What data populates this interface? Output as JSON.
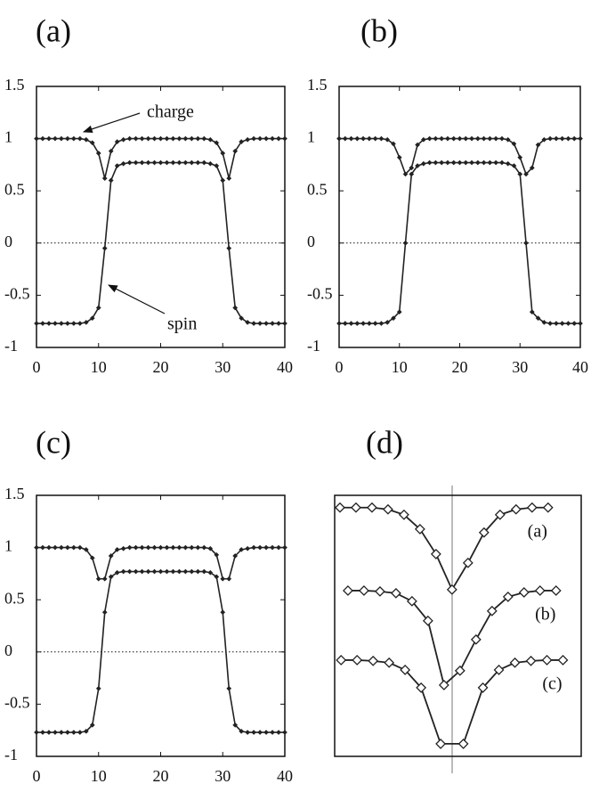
{
  "chart_data": [
    {
      "type": "line",
      "title": "(a)",
      "x": [
        0,
        1,
        2,
        3,
        4,
        5,
        6,
        7,
        8,
        9,
        10,
        11,
        12,
        13,
        14,
        15,
        16,
        17,
        18,
        19,
        20,
        21,
        22,
        23,
        24,
        25,
        26,
        27,
        28,
        29,
        30,
        31,
        32,
        33,
        34,
        35,
        36,
        37,
        38,
        39,
        40
      ],
      "series": [
        {
          "name": "charge",
          "color": "#222222",
          "values": [
            1,
            1,
            1,
            1,
            1,
            1,
            1,
            1,
            0.99,
            0.96,
            0.86,
            0.62,
            0.88,
            0.97,
            0.99,
            1,
            1,
            1,
            1,
            1,
            1,
            1,
            1,
            1,
            1,
            1,
            1,
            1,
            0.99,
            0.96,
            0.86,
            0.62,
            0.88,
            0.97,
            0.99,
            1,
            1,
            1,
            1,
            1,
            1
          ]
        },
        {
          "name": "spin",
          "color": "#222222",
          "values": [
            -0.77,
            -0.77,
            -0.77,
            -0.77,
            -0.77,
            -0.77,
            -0.77,
            -0.77,
            -0.76,
            -0.72,
            -0.62,
            -0.05,
            0.6,
            0.74,
            0.76,
            0.77,
            0.77,
            0.77,
            0.77,
            0.77,
            0.77,
            0.77,
            0.77,
            0.77,
            0.77,
            0.77,
            0.77,
            0.77,
            0.76,
            0.74,
            0.6,
            -0.05,
            -0.62,
            -0.72,
            -0.76,
            -0.77,
            -0.77,
            -0.77,
            -0.77,
            -0.77,
            -0.77
          ]
        }
      ],
      "xlim": [
        0,
        40
      ],
      "xticks": [
        0,
        10,
        20,
        30,
        40
      ],
      "ylim": [
        -1,
        1.5
      ],
      "yticks": [
        -1,
        -0.5,
        0,
        0.5,
        1,
        1.5
      ],
      "zero_line": true,
      "marker": "diamond"
    },
    {
      "type": "line",
      "title": "(b)",
      "x": [
        0,
        1,
        2,
        3,
        4,
        5,
        6,
        7,
        8,
        9,
        10,
        11,
        12,
        13,
        14,
        15,
        16,
        17,
        18,
        19,
        20,
        21,
        22,
        23,
        24,
        25,
        26,
        27,
        28,
        29,
        30,
        31,
        32,
        33,
        34,
        35,
        36,
        37,
        38,
        39,
        40
      ],
      "series": [
        {
          "color": "#222222",
          "values": [
            1,
            1,
            1,
            1,
            1,
            1,
            1,
            1,
            0.99,
            0.95,
            0.82,
            0.66,
            0.72,
            0.94,
            0.99,
            1,
            1,
            1,
            1,
            1,
            1,
            1,
            1,
            1,
            1,
            1,
            1,
            1,
            0.99,
            0.95,
            0.82,
            0.66,
            0.72,
            0.94,
            0.99,
            1,
            1,
            1,
            1,
            1,
            1
          ]
        },
        {
          "color": "#222222",
          "values": [
            -0.77,
            -0.77,
            -0.77,
            -0.77,
            -0.77,
            -0.77,
            -0.77,
            -0.77,
            -0.76,
            -0.72,
            -0.66,
            0,
            0.66,
            0.74,
            0.76,
            0.77,
            0.77,
            0.77,
            0.77,
            0.77,
            0.77,
            0.77,
            0.77,
            0.77,
            0.77,
            0.77,
            0.77,
            0.77,
            0.76,
            0.74,
            0.66,
            0,
            -0.66,
            -0.72,
            -0.76,
            -0.77,
            -0.77,
            -0.77,
            -0.77,
            -0.77,
            -0.77
          ]
        }
      ],
      "xlim": [
        0,
        40
      ],
      "xticks": [
        0,
        10,
        20,
        30,
        40
      ],
      "ylim": [
        -1,
        1.5
      ],
      "yticks": [
        -1,
        -0.5,
        0,
        0.5,
        1,
        1.5
      ],
      "zero_line": true,
      "marker": "diamond"
    },
    {
      "type": "line",
      "title": "(c)",
      "x": [
        0,
        1,
        2,
        3,
        4,
        5,
        6,
        7,
        8,
        9,
        10,
        11,
        12,
        13,
        14,
        15,
        16,
        17,
        18,
        19,
        20,
        21,
        22,
        23,
        24,
        25,
        26,
        27,
        28,
        29,
        30,
        31,
        32,
        33,
        34,
        35,
        36,
        37,
        38,
        39,
        40
      ],
      "series": [
        {
          "color": "#222222",
          "values": [
            1,
            1,
            1,
            1,
            1,
            1,
            1,
            1,
            0.98,
            0.9,
            0.7,
            0.7,
            0.92,
            0.98,
            0.99,
            1,
            1,
            1,
            1,
            1,
            1,
            1,
            1,
            1,
            1,
            1,
            1,
            1,
            0.99,
            0.93,
            0.7,
            0.7,
            0.92,
            0.98,
            0.99,
            1,
            1,
            1,
            1,
            1,
            1
          ]
        },
        {
          "color": "#222222",
          "values": [
            -0.77,
            -0.77,
            -0.77,
            -0.77,
            -0.77,
            -0.77,
            -0.77,
            -0.77,
            -0.76,
            -0.7,
            -0.35,
            0.38,
            0.72,
            0.76,
            0.77,
            0.77,
            0.77,
            0.77,
            0.77,
            0.77,
            0.77,
            0.77,
            0.77,
            0.77,
            0.77,
            0.77,
            0.77,
            0.77,
            0.76,
            0.72,
            0.38,
            -0.35,
            -0.7,
            -0.76,
            -0.77,
            -0.77,
            -0.77,
            -0.77,
            -0.77,
            -0.77,
            -0.77
          ]
        }
      ],
      "xlim": [
        0,
        40
      ],
      "xticks": [
        0,
        10,
        20,
        30,
        40
      ],
      "ylim": [
        -1,
        1.5
      ],
      "yticks": [
        -1,
        -0.5,
        0,
        0.5,
        1,
        1.5
      ],
      "zero_line": true,
      "marker": "diamond"
    },
    {
      "type": "line",
      "title": "(d)",
      "xlim": [
        0,
        15.4
      ],
      "ylim": [
        0,
        16
      ],
      "series": [
        {
          "name": "(a)",
          "color": "#222222",
          "x": [
            0.33,
            1.33,
            2.33,
            3.33,
            4.33,
            5.33,
            6.33,
            7.33,
            8.33,
            9.33,
            10.33,
            11.33,
            12.33,
            13.33
          ],
          "values": [
            15.25,
            15.25,
            15.25,
            15.14,
            14.81,
            13.93,
            12.4,
            10.22,
            11.86,
            13.72,
            14.81,
            15.14,
            15.25,
            15.25
          ]
        },
        {
          "name": "(b)",
          "color": "#222222",
          "x": [
            0.83,
            1.83,
            2.83,
            3.83,
            4.83,
            5.83,
            6.83,
            7.83,
            8.83,
            9.83,
            10.83,
            11.83,
            12.83,
            13.83
          ],
          "values": [
            10.16,
            10.16,
            10.11,
            10.0,
            9.51,
            8.31,
            4.37,
            5.25,
            7.16,
            8.91,
            9.78,
            10.05,
            10.16,
            10.16
          ]
        },
        {
          "name": "(c)",
          "color": "#222222",
          "x": [
            0.4,
            1.4,
            2.4,
            3.4,
            4.4,
            5.4,
            6.62,
            8.04,
            9.26,
            10.26,
            11.26,
            12.26,
            13.26,
            14.26
          ],
          "values": [
            5.9,
            5.9,
            5.85,
            5.74,
            5.3,
            4.21,
            0.77,
            0.77,
            4.21,
            5.3,
            5.74,
            5.85,
            5.9,
            5.9
          ]
        }
      ],
      "marker": "open-diamond"
    }
  ]
}
